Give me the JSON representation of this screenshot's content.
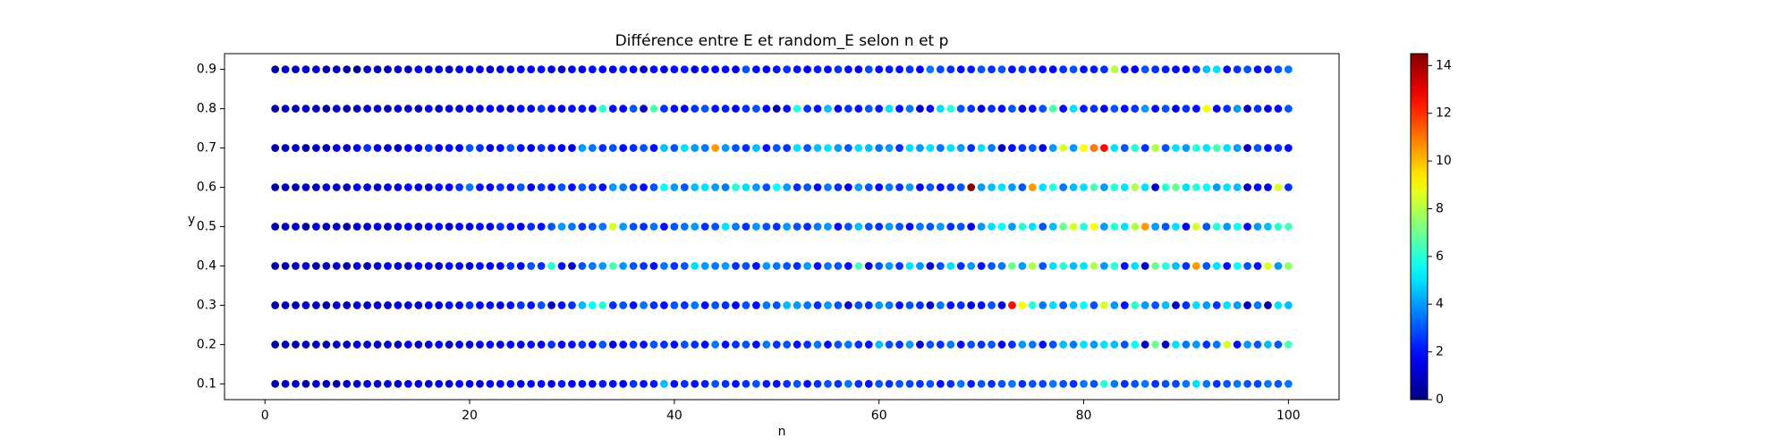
{
  "chart_data": {
    "type": "scatter",
    "title": "Différence entre E et random_E selon n et p",
    "xlabel": "n",
    "ylabel": "y",
    "x": [
      1,
      2,
      3,
      4,
      5,
      6,
      7,
      8,
      9,
      10,
      11,
      12,
      13,
      14,
      15,
      16,
      17,
      18,
      19,
      20,
      21,
      22,
      23,
      24,
      25,
      26,
      27,
      28,
      29,
      30,
      31,
      32,
      33,
      34,
      35,
      36,
      37,
      38,
      39,
      40,
      41,
      42,
      43,
      44,
      45,
      46,
      47,
      48,
      49,
      50,
      51,
      52,
      53,
      54,
      55,
      56,
      57,
      58,
      59,
      60,
      61,
      62,
      63,
      64,
      65,
      66,
      67,
      68,
      69,
      70,
      71,
      72,
      73,
      74,
      75,
      76,
      77,
      78,
      79,
      80,
      81,
      82,
      83,
      84,
      85,
      86,
      87,
      88,
      89,
      90,
      91,
      92,
      93,
      94,
      95,
      96,
      97,
      98,
      99,
      100
    ],
    "series": [
      {
        "y": 0.1,
        "values": [
          0.6,
          0.8,
          1,
          0.6,
          1,
          0.8,
          0.6,
          1,
          0.8,
          1.2,
          1,
          1.2,
          1,
          1.5,
          1.2,
          1,
          1.5,
          1.2,
          1.8,
          1.5,
          1.2,
          1.8,
          1.5,
          2,
          1.5,
          1.8,
          2,
          1.5,
          2.2,
          1.8,
          2,
          1.5,
          2.2,
          2,
          1.8,
          2.5,
          2,
          2.2,
          4.5,
          2,
          2.5,
          2,
          2.2,
          3,
          2.5,
          2,
          2.5,
          3,
          2.2,
          2,
          2.5,
          3,
          2,
          2.5,
          3,
          2.5,
          3.5,
          2.5,
          2,
          3,
          2.5,
          3,
          2.8,
          2.5,
          3,
          2,
          2.5,
          3.5,
          2.2,
          3,
          2.5,
          3,
          3.5,
          2.5,
          3,
          2.8,
          3.5,
          3,
          2.5,
          3.5,
          3,
          6,
          3.5,
          2.5,
          3,
          3.5,
          2.5,
          3,
          2.8,
          3.5,
          5,
          3.5,
          2.5,
          3,
          3.5,
          3,
          2.8,
          3.5,
          3,
          3.5
        ]
      },
      {
        "y": 0.2,
        "values": [
          0.5,
          0.8,
          0.6,
          1,
          0.8,
          0.6,
          1,
          0.8,
          1.2,
          0.8,
          1,
          1.2,
          0.8,
          1.5,
          1,
          1.2,
          1.8,
          1,
          1.5,
          1.2,
          1.5,
          2,
          1.2,
          1.8,
          1.5,
          2,
          1.5,
          2.5,
          1.8,
          2,
          2.5,
          2,
          3,
          1.5,
          2,
          2.5,
          2,
          3,
          2.5,
          2,
          3,
          2.5,
          2,
          3.5,
          2,
          2.5,
          3,
          2,
          3.5,
          2.5,
          3,
          2,
          2.5,
          3.5,
          2,
          3,
          3.5,
          2.5,
          2,
          4.5,
          3,
          2.5,
          4,
          1,
          3,
          2.5,
          3.5,
          2,
          3,
          2.5,
          3,
          1.5,
          2.5,
          4,
          3.5,
          2,
          3,
          4.5,
          3.5,
          5,
          4,
          5,
          4.5,
          3,
          5.5,
          1,
          7,
          1,
          5,
          3.5,
          4,
          2.5,
          3.5,
          8.5,
          2,
          4,
          3,
          4.5,
          3,
          6.5
        ]
      },
      {
        "y": 0.3,
        "values": [
          0.5,
          0.8,
          0.6,
          1,
          0.8,
          0.5,
          1,
          0.8,
          1.2,
          1,
          1,
          0.8,
          1.5,
          1.2,
          1,
          1.5,
          1.2,
          2,
          1.5,
          2.5,
          1.8,
          2,
          1.5,
          2,
          2.5,
          2,
          3,
          1,
          2,
          2.5,
          4.5,
          5.5,
          6,
          2.5,
          3,
          2,
          3.5,
          2.5,
          2,
          3,
          2.5,
          3.5,
          2,
          3,
          2.5,
          1.5,
          3,
          2,
          3.5,
          3,
          4.5,
          4,
          3.5,
          2.5,
          4,
          3,
          1,
          3,
          2.5,
          4,
          3.5,
          2,
          3,
          2.5,
          1,
          3.5,
          2,
          2.5,
          1.5,
          2,
          3,
          1.5,
          12.5,
          9,
          6,
          3.5,
          5,
          3,
          4.5,
          5.5,
          3,
          8.5,
          4,
          2,
          6,
          4,
          3,
          4.5,
          1,
          2.5,
          5,
          4,
          2.5,
          5,
          4,
          1,
          3.5,
          0.5,
          5,
          4.5
        ]
      },
      {
        "y": 0.4,
        "values": [
          0.5,
          0.6,
          0.8,
          1,
          0.5,
          0.8,
          1,
          0.6,
          1.2,
          0.8,
          1,
          1.5,
          1.2,
          1,
          1.8,
          1.5,
          1,
          2,
          1.5,
          1.2,
          2,
          1.8,
          1.5,
          2.5,
          1.5,
          3,
          2.5,
          6,
          2,
          1,
          3,
          3.5,
          4,
          6.5,
          4,
          3,
          2.5,
          2,
          3.5,
          2.5,
          3,
          5,
          4,
          3.5,
          4,
          2.5,
          3,
          2,
          4,
          3.5,
          3,
          2.5,
          4,
          2,
          3.5,
          3,
          2,
          6.5,
          1,
          3,
          4,
          2.5,
          5,
          4,
          1,
          3,
          5,
          2.5,
          4,
          2,
          3,
          3.5,
          7,
          4,
          8,
          3,
          5,
          6,
          4.5,
          5,
          8,
          4,
          6,
          2,
          5,
          1,
          7,
          6,
          4.5,
          2.5,
          10.5,
          3,
          5,
          2,
          5.5,
          3,
          2,
          8.5,
          4,
          7.5
        ]
      },
      {
        "y": 0.5,
        "values": [
          0.6,
          0.8,
          1,
          0.5,
          1.2,
          0.8,
          1,
          0.6,
          1.2,
          1,
          1.5,
          1,
          1.2,
          1.8,
          1,
          1.5,
          2,
          1.2,
          1.8,
          1.5,
          2,
          1.5,
          2.5,
          2,
          1.8,
          2.5,
          2,
          3,
          4,
          3.5,
          2.5,
          3,
          3.5,
          8.5,
          4,
          3,
          2.5,
          3.5,
          2,
          3,
          3.5,
          4,
          2.5,
          3,
          5,
          3.5,
          2.5,
          4,
          3,
          2.5,
          4,
          3,
          2.5,
          3.5,
          4,
          2,
          3,
          4.5,
          3,
          2.5,
          4,
          3,
          2,
          3.5,
          3,
          4,
          2.5,
          3,
          1.5,
          4,
          5,
          5.5,
          4,
          6,
          5,
          3,
          4.5,
          7,
          8.5,
          6,
          9,
          4,
          6,
          5,
          8,
          10.5,
          4,
          3,
          5,
          1.5,
          8.5,
          3,
          6,
          4,
          5.5,
          2,
          4,
          4.5,
          6,
          6.5
        ]
      },
      {
        "y": 0.6,
        "values": [
          0.5,
          0.8,
          0.6,
          1,
          0.8,
          1.2,
          1,
          0.8,
          1.5,
          1.2,
          1,
          1.5,
          1.2,
          1.8,
          1.5,
          1,
          2,
          1.8,
          2.5,
          3.5,
          2,
          1.8,
          2.5,
          2,
          3,
          1.5,
          2.5,
          2,
          3,
          2,
          3,
          2.5,
          2,
          4,
          3.5,
          2.5,
          2,
          3,
          5.5,
          4,
          3,
          4.5,
          5,
          4,
          3.5,
          6,
          5,
          4,
          3,
          5.5,
          4,
          2.5,
          3,
          2,
          3.5,
          2.5,
          1.5,
          4,
          3,
          2,
          3.5,
          2.5,
          4,
          1.5,
          3,
          2,
          2.5,
          3,
          14.5,
          4,
          4.5,
          5,
          4,
          3,
          10.5,
          5,
          6,
          3.5,
          4.5,
          5,
          6.5,
          4,
          6,
          5,
          8,
          5,
          1,
          6,
          7,
          5,
          6,
          5.5,
          4,
          5,
          4.5,
          1,
          2,
          1.5,
          8.5,
          2.5
        ]
      },
      {
        "y": 0.7,
        "values": [
          0.6,
          0.8,
          1,
          0.5,
          1,
          0.8,
          1.2,
          1,
          1.5,
          2.5,
          1.5,
          1.2,
          1,
          1.8,
          1.5,
          2.5,
          1.5,
          2,
          1.8,
          3,
          2.5,
          1.5,
          2,
          3,
          2,
          1.5,
          2.5,
          2,
          1.8,
          1.5,
          4,
          3.5,
          2.5,
          3,
          2,
          2.5,
          3,
          2,
          4.5,
          3,
          5,
          4,
          3.5,
          10.5,
          4,
          3,
          2.5,
          4.5,
          2,
          3,
          2.5,
          5,
          3,
          4.5,
          5,
          4,
          3,
          5,
          4.5,
          3.5,
          4,
          2.5,
          5,
          4,
          5,
          3.5,
          5,
          4,
          2.5,
          5,
          3.5,
          1,
          2,
          2.5,
          3,
          1.5,
          4,
          8.5,
          4,
          9,
          11,
          12.5,
          5,
          3,
          6,
          2.5,
          8,
          3,
          5,
          4,
          6,
          5,
          6.5,
          5,
          4,
          1,
          3,
          2,
          2.5,
          2
        ]
      },
      {
        "y": 0.8,
        "values": [
          0.5,
          0.8,
          0.6,
          1,
          0.8,
          0.5,
          1,
          0.6,
          0.8,
          1,
          1,
          0.6,
          1.2,
          1,
          0.8,
          1.5,
          1,
          1.2,
          1,
          1.5,
          1.2,
          1.8,
          1.5,
          1,
          2,
          1.5,
          2.5,
          1.8,
          1.5,
          2,
          2,
          1.5,
          6,
          2,
          1.8,
          3,
          1,
          6.5,
          2.5,
          2,
          1.5,
          2.5,
          3,
          2,
          2.2,
          1.5,
          2.5,
          3,
          1.8,
          0.5,
          2,
          6,
          2.5,
          2,
          4.5,
          1.8,
          2.5,
          2,
          3,
          2.2,
          5,
          2,
          3.5,
          1,
          2,
          5,
          6,
          3,
          2.5,
          1.5,
          2.5,
          2,
          3,
          1.5,
          2,
          3,
          6.5,
          2,
          5,
          2.2,
          2.5,
          1.5,
          3,
          2,
          2.5,
          4,
          2,
          3,
          1.5,
          2.5,
          2,
          9,
          1.5,
          2.5,
          4,
          1,
          2.5,
          1.5,
          2,
          3
        ]
      },
      {
        "y": 0.9,
        "values": [
          0.5,
          1,
          0.8,
          1.2,
          1,
          0.6,
          1,
          0.5,
          0.3,
          1,
          1,
          0.8,
          1.2,
          1,
          1.5,
          1,
          1.2,
          1,
          1.5,
          1.3,
          1.5,
          1,
          1.4,
          1.2,
          1.8,
          1.5,
          2,
          1.5,
          1,
          1.8,
          1.5,
          2,
          1.8,
          1.5,
          2.2,
          1.8,
          1,
          2,
          1.5,
          2,
          2.2,
          1.5,
          2,
          1.8,
          2,
          1.5,
          3,
          2,
          1.8,
          2,
          2.5,
          2,
          1.8,
          2.2,
          2,
          2.5,
          2,
          1.5,
          2.8,
          2,
          2.2,
          2,
          2.5,
          1.8,
          3.5,
          2.8,
          2.5,
          2,
          2.2,
          3,
          2.5,
          3,
          2,
          2.5,
          2.2,
          2,
          1.8,
          2.5,
          3,
          2,
          2.2,
          2.5,
          8,
          2,
          1.5,
          3,
          2.5,
          2.2,
          2,
          1.8,
          2.5,
          4.5,
          5,
          2,
          2.5,
          3,
          2,
          2.2,
          3,
          3.5
        ]
      }
    ],
    "xlim": [
      -3.95,
      104.95
    ],
    "ylim": [
      0.06,
      0.94
    ],
    "xticks": [
      0,
      20,
      40,
      60,
      80,
      100
    ],
    "yticks": [
      0.1,
      0.2,
      0.3,
      0.4,
      0.5,
      0.6,
      0.7,
      0.8,
      0.9
    ],
    "colormap": "jet",
    "clim": [
      0,
      14.5
    ],
    "colorbar_ticks": [
      0,
      2,
      4,
      6,
      8,
      10,
      12,
      14
    ]
  }
}
